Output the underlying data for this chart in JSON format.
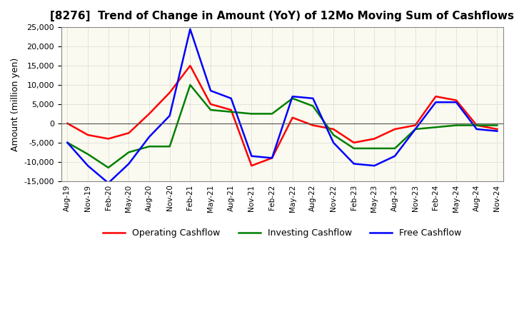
{
  "title": "[8276]  Trend of Change in Amount (YoY) of 12Mo Moving Sum of Cashflows",
  "ylabel": "Amount (million yen)",
  "x_labels": [
    "Aug-19",
    "Nov-19",
    "Feb-20",
    "May-20",
    "Aug-20",
    "Nov-20",
    "Feb-21",
    "May-21",
    "Aug-21",
    "Nov-21",
    "Feb-22",
    "May-22",
    "Aug-22",
    "Nov-22",
    "Feb-23",
    "May-23",
    "Aug-23",
    "Nov-23",
    "Feb-24",
    "May-24",
    "Aug-24",
    "Nov-24"
  ],
  "operating": [
    0,
    -3000,
    -4000,
    -2500,
    2500,
    8000,
    15000,
    5000,
    3500,
    -11000,
    -9000,
    1500,
    -500,
    -1500,
    -5000,
    -4000,
    -1500,
    -500,
    7000,
    6000,
    -500,
    -1500
  ],
  "investing": [
    -5000,
    -8000,
    -11500,
    -7500,
    -6000,
    -6000,
    10000,
    3500,
    3000,
    2500,
    2500,
    6500,
    4500,
    -3000,
    -6500,
    -6500,
    -6500,
    -1500,
    -1000,
    -500,
    -500,
    -500
  ],
  "free": [
    -5000,
    -11000,
    -15500,
    -10500,
    -3500,
    2000,
    24500,
    8500,
    6500,
    -8500,
    -9000,
    7000,
    6500,
    -5000,
    -10500,
    -11000,
    -8500,
    -1500,
    5500,
    5500,
    -1500,
    -2000
  ],
  "ylim": [
    -15000,
    25000
  ],
  "yticks": [
    -15000,
    -10000,
    -5000,
    0,
    5000,
    10000,
    15000,
    20000,
    25000
  ],
  "colors": {
    "operating": "#FF0000",
    "investing": "#008000",
    "free": "#0000FF"
  },
  "legend_labels": [
    "Operating Cashflow",
    "Investing Cashflow",
    "Free Cashflow"
  ],
  "bg_color": "#FFFFF0",
  "plot_bg_color": "#F5F5DC",
  "grid_color": "#999999",
  "title_fontsize": 11,
  "linewidth": 1.8
}
